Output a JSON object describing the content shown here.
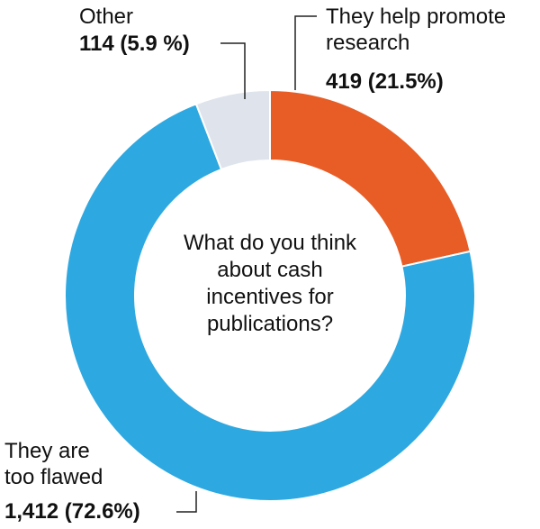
{
  "chart_data": {
    "type": "pie",
    "title": "What do you think about cash incentives for publications?",
    "categories": [
      "They help promote research",
      "They are too flawed",
      "Other"
    ],
    "values": [
      419,
      1412,
      114
    ],
    "value_labels": [
      "419 (21.5%)",
      "1,412 (72.6%)",
      "114 (5.9 %)"
    ],
    "colors": [
      "#e85d26",
      "#2ea8e0",
      "#dfe4ec"
    ]
  }
}
